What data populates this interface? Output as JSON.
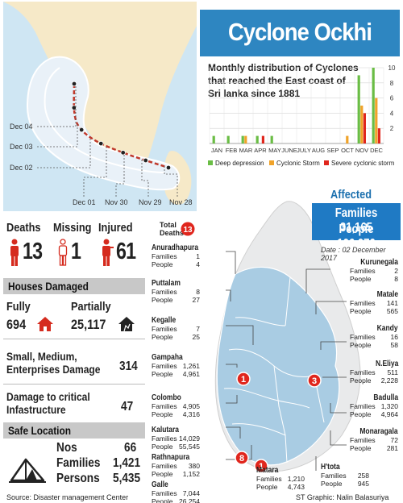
{
  "header": {
    "title": "Cyclone Ockhi"
  },
  "track": {
    "date_labels": [
      "Dec 04",
      "Dec 03",
      "Dec 02",
      "Dec 01",
      "Nov 30",
      "Nov 29",
      "Nov 28"
    ],
    "colors": {
      "sea": "#cfe6f3",
      "land": "#f6e9c8",
      "cone": "#e9f1f8",
      "track": "#c0392b"
    }
  },
  "chart_data": {
    "type": "bar",
    "title": "Monthly distribution of Cyclones that reached the East coast of Sri lanka since 1881",
    "categories": [
      "JAN",
      "FEB",
      "MAR",
      "APR",
      "MAY",
      "JUNE",
      "JULY",
      "AUG",
      "SEP",
      "OCT",
      "NOV",
      "DEC"
    ],
    "series": [
      {
        "name": "Deep depression",
        "color": "#6abd45",
        "values": [
          1,
          1,
          1,
          1,
          1,
          0,
          0,
          0,
          0,
          0,
          9,
          10
        ]
      },
      {
        "name": "Cyclonic Storm",
        "color": "#f0a32a",
        "values": [
          0,
          0,
          1,
          0,
          0,
          0,
          0,
          0,
          0,
          1,
          5,
          6
        ]
      },
      {
        "name": "Severe cyclonic storm",
        "color": "#e0261d",
        "values": [
          0,
          0,
          0,
          1,
          0,
          0,
          0,
          0,
          0,
          0,
          4,
          2
        ]
      }
    ],
    "yticks": [
      2,
      4,
      6,
      8,
      10
    ],
    "ylim": [
      0,
      10
    ],
    "grid": true,
    "legend": "bottom"
  },
  "casualties": {
    "deaths_label": "Deaths",
    "deaths": "13",
    "missing_label": "Missing",
    "missing": "1",
    "injured_label": "Injured",
    "injured": "61"
  },
  "houses": {
    "header": "Houses Damaged",
    "fully_label": "Fully",
    "fully": "694",
    "partially_label": "Partially",
    "partially": "25,117"
  },
  "enterprise": {
    "label": "Small, Medium, Enterprises Damage",
    "value": "314"
  },
  "infra": {
    "label": "Damage to critical Infastructure",
    "value": "47"
  },
  "safe": {
    "header": "Safe Location",
    "nos_label": "Nos",
    "nos": "66",
    "families_label": "Families",
    "families": "1,421",
    "persons_label": "Persons",
    "persons": "5,435"
  },
  "affected": {
    "label": "Affected",
    "families_label": "Families",
    "families": "31,165",
    "people_label": "People",
    "people": "106,076",
    "date": "Date : 02 December 2017"
  },
  "total_deaths": {
    "label": "Total Deaths",
    "value": "13"
  },
  "districts": {
    "anuradhapura": {
      "name": "Anuradhapura",
      "families": "1",
      "people": "4"
    },
    "puttalam": {
      "name": "Puttalam",
      "families": "8",
      "people": "27"
    },
    "kegalle": {
      "name": "Kegalle",
      "families": "7",
      "people": "25"
    },
    "gampaha": {
      "name": "Gampaha",
      "families": "1,261",
      "people": "4,961"
    },
    "colombo": {
      "name": "Colombo",
      "families": "4,905",
      "people": "4,316"
    },
    "kalutara": {
      "name": "Kalutara",
      "families": "14,029",
      "people": "55,545"
    },
    "rathnapura": {
      "name": "Rathnapura",
      "families": "380",
      "people": "1,152"
    },
    "galle": {
      "name": "Galle",
      "families": "7,044",
      "people": "26,254"
    },
    "matara": {
      "name": "Matara",
      "families": "1,210",
      "people": "4,743"
    },
    "htota": {
      "name": "H'tota",
      "families": "258",
      "people": "945"
    },
    "kurunegala": {
      "name": "Kurunegala",
      "families": "2",
      "people": "8"
    },
    "matale": {
      "name": "Matale",
      "families": "141",
      "people": "565"
    },
    "kandy": {
      "name": "Kandy",
      "families": "16",
      "people": "58"
    },
    "nuwaraeliya": {
      "name": "N.Eliya",
      "families": "511",
      "people": "2,228"
    },
    "badulla": {
      "name": "Badulla",
      "families": "1,320",
      "people": "4,964"
    },
    "monaragala": {
      "name": "Monaragala",
      "families": "72",
      "people": "281"
    }
  },
  "labels": {
    "families": "Families",
    "people": "People"
  },
  "death_markers": [
    "1",
    "3",
    "8",
    "1"
  ],
  "footer": {
    "source": "Source: Disaster management Center",
    "credit": "ST Graphic: Nalin Balasuriya"
  }
}
